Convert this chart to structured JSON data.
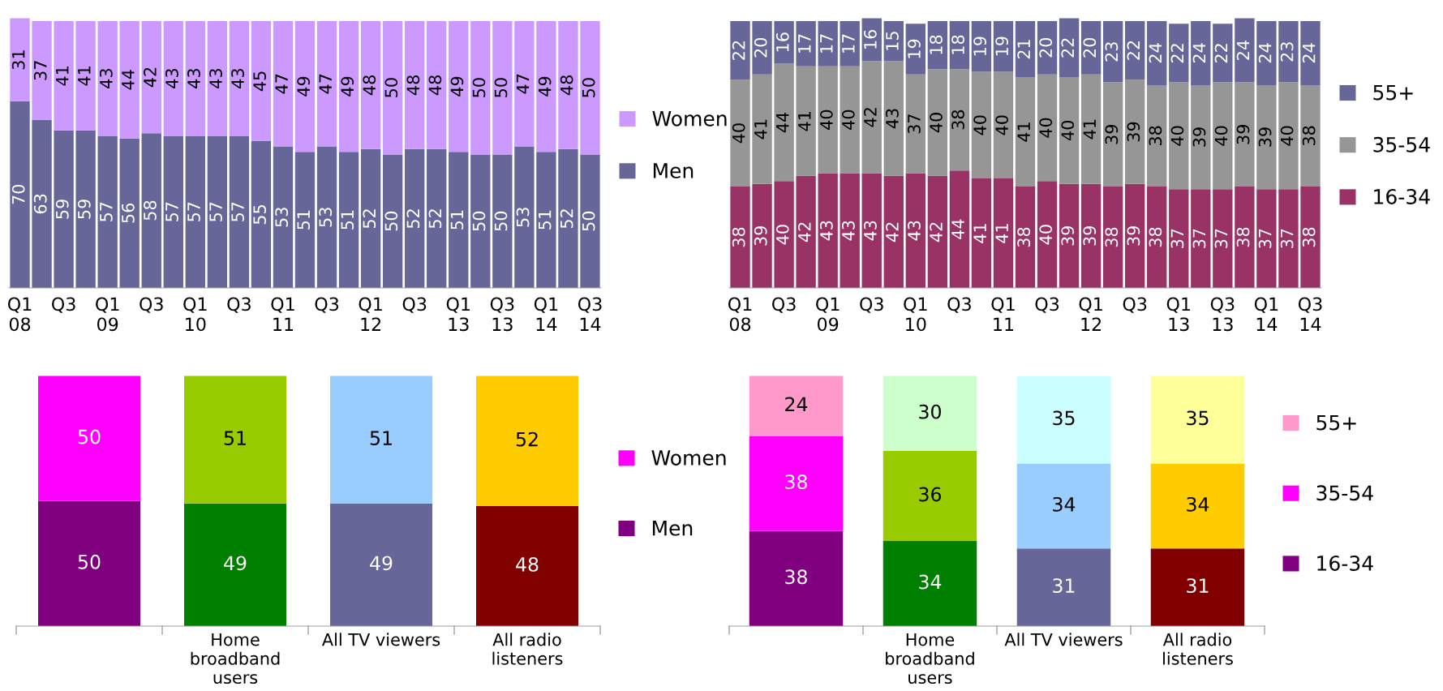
{
  "chart_data": [
    {
      "type": "bar",
      "stacked": true,
      "data_labels": true,
      "legend": "right",
      "grid": false,
      "tick_labels": "x",
      "categories": [
        "Q1\n08",
        null,
        "Q3",
        null,
        "Q1\n09",
        null,
        "Q3",
        null,
        "Q1\n10",
        null,
        "Q3",
        null,
        "Q1\n11",
        null,
        "Q3",
        null,
        "Q1\n12",
        null,
        "Q3",
        null,
        "Q1\n13",
        null,
        "Q3\n13",
        null,
        "Q1\n14",
        null,
        "Q3\n14"
      ],
      "series": [
        {
          "name": "Men",
          "color": "#666699",
          "values": [
            70,
            63,
            59,
            59,
            57,
            56,
            58,
            57,
            57,
            57,
            57,
            55,
            53,
            51,
            53,
            51,
            52,
            50,
            52,
            52,
            51,
            50,
            50,
            53,
            51,
            52,
            50
          ]
        },
        {
          "name": "Women",
          "color": "#cc99ff",
          "values": [
            31,
            37,
            41,
            41,
            43,
            44,
            42,
            43,
            43,
            43,
            43,
            45,
            47,
            49,
            47,
            49,
            48,
            50,
            48,
            48,
            49,
            50,
            50,
            47,
            49,
            48,
            50
          ]
        }
      ]
    },
    {
      "type": "bar",
      "stacked": true,
      "data_labels": true,
      "legend": "right",
      "grid": false,
      "tick_labels": "x",
      "categories": [
        "Q1\n08",
        null,
        "Q3",
        null,
        "Q1\n09",
        null,
        "Q3",
        null,
        "Q1\n10",
        null,
        "Q3",
        null,
        "Q1\n11",
        null,
        "Q3",
        null,
        "Q1\n12",
        null,
        "Q3",
        null,
        "Q1\n13",
        null,
        "Q3\n13",
        null,
        "Q1\n14",
        null,
        "Q3\n14"
      ],
      "series": [
        {
          "name": "16-34",
          "color": "#993366",
          "values": [
            38,
            39,
            40,
            42,
            43,
            43,
            43,
            42,
            43,
            42,
            44,
            41,
            41,
            38,
            40,
            39,
            39,
            38,
            39,
            38,
            37,
            37,
            37,
            38,
            37,
            37,
            38
          ]
        },
        {
          "name": "35-54",
          "color": "#969696",
          "values": [
            40,
            41,
            44,
            41,
            40,
            40,
            42,
            43,
            37,
            40,
            38,
            40,
            40,
            41,
            40,
            40,
            41,
            39,
            39,
            38,
            40,
            39,
            40,
            39,
            39,
            40,
            38
          ]
        },
        {
          "name": "55+",
          "color": "#666699",
          "values": [
            22,
            20,
            16,
            17,
            17,
            17,
            16,
            15,
            19,
            18,
            18,
            19,
            19,
            21,
            20,
            22,
            20,
            23,
            22,
            24,
            22,
            24,
            22,
            24,
            24,
            23,
            24
          ]
        }
      ]
    },
    {
      "type": "bar",
      "stacked": true,
      "data_labels": true,
      "legend": "right",
      "grid": false,
      "tick_labels": "x",
      "categories": [
        null,
        "Home\nbroadband\nusers",
        "All TV viewers",
        "All radio\nlisteners"
      ],
      "series": [
        {
          "name": "Men",
          "color": "#800080",
          "colors": [
            "#800080",
            "#008000",
            "#666699",
            "#800000"
          ],
          "values": [
            50,
            49,
            49,
            48
          ]
        },
        {
          "name": "Women",
          "color": "#ff00ff",
          "colors": [
            "#ff00ff",
            "#99cc00",
            "#99ccff",
            "#ffcc00"
          ],
          "values": [
            50,
            51,
            51,
            52
          ]
        }
      ]
    },
    {
      "type": "bar",
      "stacked": true,
      "data_labels": true,
      "legend": "right",
      "grid": false,
      "tick_labels": "x",
      "categories": [
        null,
        "Home\nbroadband\nusers",
        "All TV viewers",
        "All radio\nlisteners"
      ],
      "series": [
        {
          "name": "16-34",
          "color": "#800080",
          "colors": [
            "#800080",
            "#008000",
            "#666699",
            "#800000"
          ],
          "values": [
            38,
            34,
            31,
            31
          ]
        },
        {
          "name": "35-54",
          "color": "#ff00ff",
          "colors": [
            "#ff00ff",
            "#99cc00",
            "#99ccff",
            "#ffcc00"
          ],
          "values": [
            38,
            36,
            34,
            34
          ]
        },
        {
          "name": "55+",
          "color": "#ff99cc",
          "colors": [
            "#ff99cc",
            "#ccffcc",
            "#ccffff",
            "#ffff99"
          ],
          "values": [
            24,
            30,
            35,
            35
          ]
        }
      ]
    }
  ]
}
